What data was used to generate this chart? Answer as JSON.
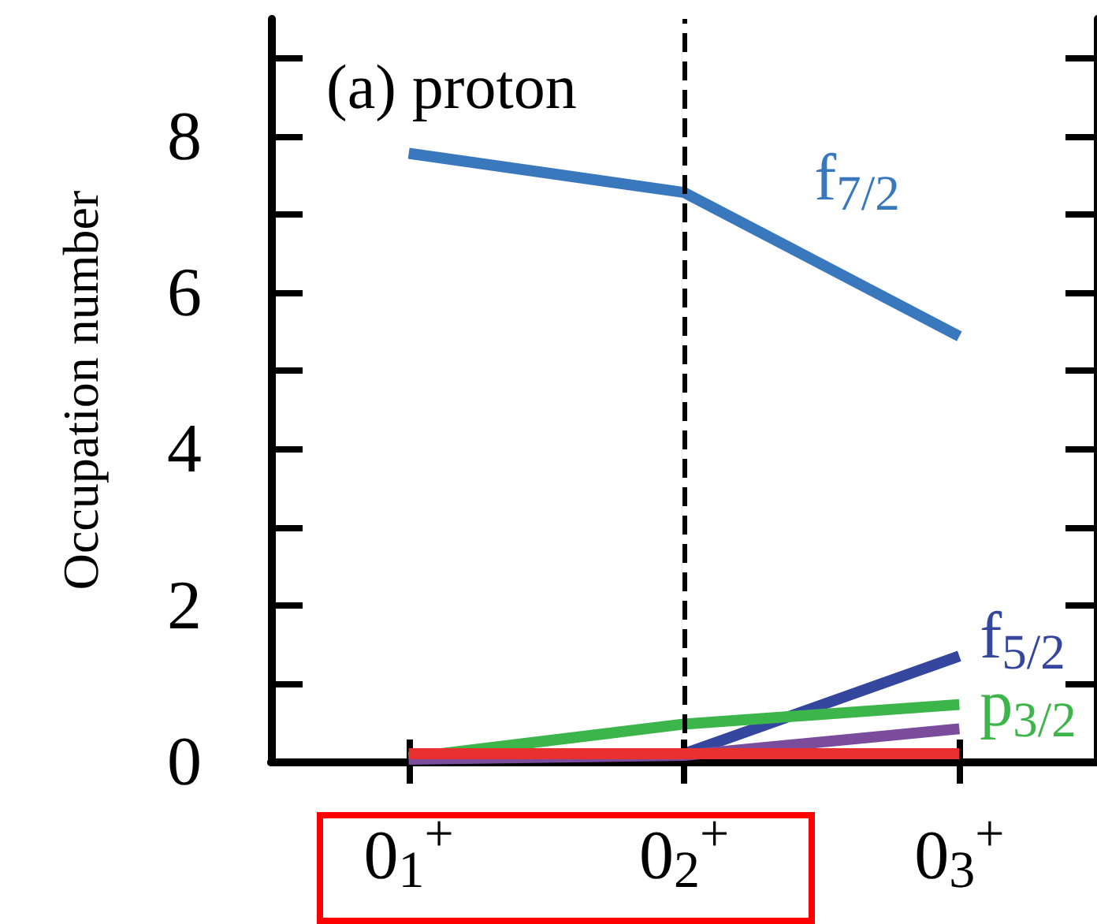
{
  "chart_data": {
    "type": "line",
    "ylabel": "Occupation number",
    "annotations": [
      "(a) proton"
    ],
    "categories": [
      "0$_{1}$$^{+}$",
      "0$_{2}$$^{+}$",
      "0$_{3}$$^{+}$"
    ],
    "series": [
      {
        "name": "f$_{7/2}$",
        "color": "#3a78be",
        "values": [
          7.78,
          7.28,
          5.44
        ]
      },
      {
        "name": "f$_{5/2}$",
        "color": "#34469e",
        "values": [
          0.05,
          0.1,
          1.35
        ]
      },
      {
        "name": "p$_{3/2}$",
        "color": "#3cb54a",
        "values": [
          0.05,
          0.48,
          0.73
        ]
      },
      {
        "color": "#7b4c9c",
        "values": [
          0.03,
          0.08,
          0.42
        ]
      },
      {
        "color": "#e8312e",
        "values": [
          0.1,
          0.1,
          0.1
        ]
      }
    ],
    "ylim": [
      0,
      9.5
    ],
    "yticks": [
      0,
      2,
      4,
      6,
      8
    ],
    "grid": false,
    "marker": "none",
    "line_style": "solid",
    "ref_lines": [
      {
        "axis": "x",
        "value": "0$_{2}$$^{+}$",
        "line_style": "dashed",
        "color": "#000000"
      }
    ]
  }
}
